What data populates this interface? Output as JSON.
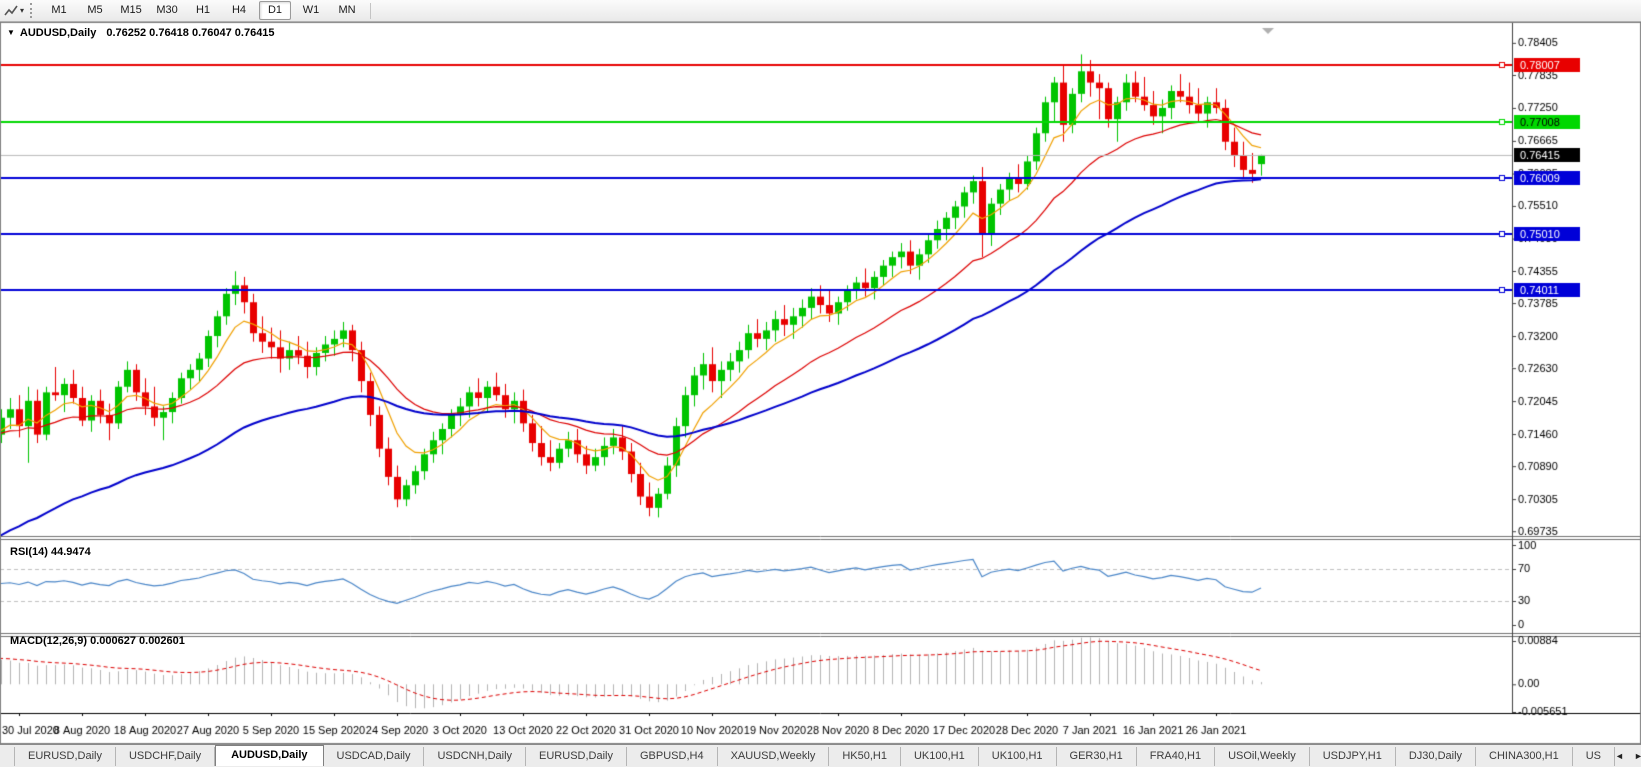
{
  "toolbar": {
    "timeframes": [
      "M1",
      "M5",
      "M15",
      "M30",
      "H1",
      "H4",
      "D1",
      "W1",
      "MN"
    ],
    "active_timeframe": "D1",
    "dropdown_icon": "▾"
  },
  "chart_window": {
    "collapse_icon": "▼",
    "title_symbol": "AUDUSD,Daily",
    "title_ohlc": "0.76252 0.76418 0.76047 0.76415"
  },
  "indicators": {
    "rsi_label": "RSI(14) 44.9474",
    "macd_label": "MACD(12,26,9) 0.000627 0.002601"
  },
  "tabbar": {
    "tabs": [
      "EURUSD,Daily",
      "USDCHF,Daily",
      "AUDUSD,Daily",
      "USDCAD,Daily",
      "USDCNH,Daily",
      "EURUSD,Daily",
      "GBPUSD,H4",
      "XAUUSD,Weekly",
      "HK50,H1",
      "UK100,H1",
      "UK100,H1",
      "GER30,H1",
      "FRA40,H1",
      "USOil,Weekly",
      "USDJPY,H1",
      "DJ30,Daily",
      "CHINA300,H1",
      "US"
    ],
    "active_index": 2,
    "scroll_left_icon": "◄",
    "scroll_right_icon": "►"
  },
  "chart_data": {
    "type": "candlestick",
    "title": "AUDUSD,Daily",
    "current_ohlc": {
      "open": 0.76252,
      "high": 0.76418,
      "low": 0.76047,
      "close": 0.76415
    },
    "ylim": [
      0.6965,
      0.7874
    ],
    "price_axis_ticks": [
      0.78405,
      0.77835,
      0.7725,
      0.76665,
      0.76085,
      0.7551,
      0.7493,
      0.74355,
      0.73785,
      0.732,
      0.7263,
      0.72045,
      0.7146,
      0.7089,
      0.70305,
      0.69735
    ],
    "x_labels": [
      "30 Jul 2020",
      "8 Aug 2020",
      "18 Aug 2020",
      "27 Aug 2020",
      "5 Sep 2020",
      "15 Sep 2020",
      "24 Sep 2020",
      "3 Oct 2020",
      "13 Oct 2020",
      "22 Oct 2020",
      "31 Oct 2020",
      "10 Nov 2020",
      "19 Nov 2020",
      "28 Nov 2020",
      "8 Dec 2020",
      "17 Dec 2020",
      "28 Dec 2020",
      "7 Jan 2021",
      "16 Jan 2021",
      "26 Jan 2021"
    ],
    "x_first_label_bar": 3,
    "x_label_step": 7,
    "candle_up_color": "#00c400",
    "candle_down_color": "#e80000",
    "candles": [
      [
        0.716,
        0.718,
        0.712,
        0.7145
      ],
      [
        0.7145,
        0.719,
        0.713,
        0.7175
      ],
      [
        0.7175,
        0.721,
        0.7155,
        0.719
      ],
      [
        0.719,
        0.7215,
        0.714,
        0.716
      ],
      [
        0.716,
        0.723,
        0.7095,
        0.7205
      ],
      [
        0.7205,
        0.7225,
        0.713,
        0.7145
      ],
      [
        0.7145,
        0.723,
        0.7135,
        0.722
      ],
      [
        0.722,
        0.7265,
        0.7205,
        0.7215
      ],
      [
        0.7215,
        0.7245,
        0.7185,
        0.7235
      ],
      [
        0.7235,
        0.726,
        0.72,
        0.721
      ],
      [
        0.721,
        0.723,
        0.716,
        0.717
      ],
      [
        0.717,
        0.7215,
        0.715,
        0.7205
      ],
      [
        0.7205,
        0.7225,
        0.7165,
        0.718
      ],
      [
        0.718,
        0.72,
        0.7135,
        0.7165
      ],
      [
        0.7165,
        0.724,
        0.7155,
        0.723
      ],
      [
        0.723,
        0.7275,
        0.722,
        0.726
      ],
      [
        0.726,
        0.727,
        0.7205,
        0.722
      ],
      [
        0.722,
        0.7245,
        0.718,
        0.7195
      ],
      [
        0.7195,
        0.723,
        0.716,
        0.7175
      ],
      [
        0.7175,
        0.7195,
        0.7135,
        0.7185
      ],
      [
        0.7185,
        0.722,
        0.7165,
        0.721
      ],
      [
        0.721,
        0.7255,
        0.72,
        0.7245
      ],
      [
        0.7245,
        0.727,
        0.7225,
        0.726
      ],
      [
        0.726,
        0.729,
        0.724,
        0.728
      ],
      [
        0.728,
        0.733,
        0.7265,
        0.732
      ],
      [
        0.732,
        0.7365,
        0.73,
        0.7355
      ],
      [
        0.7355,
        0.7405,
        0.734,
        0.7395
      ],
      [
        0.7395,
        0.7435,
        0.7375,
        0.741
      ],
      [
        0.741,
        0.7425,
        0.736,
        0.738
      ],
      [
        0.738,
        0.7395,
        0.731,
        0.7325
      ],
      [
        0.7325,
        0.7355,
        0.729,
        0.731
      ],
      [
        0.731,
        0.7335,
        0.728,
        0.73
      ],
      [
        0.73,
        0.733,
        0.7255,
        0.728
      ],
      [
        0.728,
        0.731,
        0.726,
        0.7295
      ],
      [
        0.7295,
        0.732,
        0.727,
        0.7285
      ],
      [
        0.7285,
        0.731,
        0.7245,
        0.7265
      ],
      [
        0.7265,
        0.73,
        0.725,
        0.729
      ],
      [
        0.729,
        0.732,
        0.7275,
        0.7305
      ],
      [
        0.7305,
        0.733,
        0.7285,
        0.7315
      ],
      [
        0.7315,
        0.7345,
        0.73,
        0.733
      ],
      [
        0.733,
        0.734,
        0.7275,
        0.7295
      ],
      [
        0.7295,
        0.731,
        0.722,
        0.724
      ],
      [
        0.724,
        0.7255,
        0.716,
        0.718
      ],
      [
        0.718,
        0.7195,
        0.7105,
        0.712
      ],
      [
        0.712,
        0.714,
        0.7055,
        0.707
      ],
      [
        0.707,
        0.709,
        0.7016,
        0.703
      ],
      [
        0.703,
        0.7065,
        0.7018,
        0.7055
      ],
      [
        0.7055,
        0.709,
        0.704,
        0.708
      ],
      [
        0.708,
        0.712,
        0.7065,
        0.711
      ],
      [
        0.711,
        0.715,
        0.7095,
        0.7135
      ],
      [
        0.7135,
        0.7165,
        0.711,
        0.7155
      ],
      [
        0.7155,
        0.719,
        0.714,
        0.718
      ],
      [
        0.718,
        0.721,
        0.716,
        0.7195
      ],
      [
        0.7195,
        0.723,
        0.7175,
        0.722
      ],
      [
        0.722,
        0.7245,
        0.7195,
        0.721
      ],
      [
        0.721,
        0.724,
        0.7185,
        0.723
      ],
      [
        0.723,
        0.7255,
        0.7205,
        0.7215
      ],
      [
        0.7215,
        0.7235,
        0.7175,
        0.719
      ],
      [
        0.719,
        0.722,
        0.7165,
        0.7205
      ],
      [
        0.7205,
        0.7225,
        0.715,
        0.7165
      ],
      [
        0.7165,
        0.718,
        0.7115,
        0.713
      ],
      [
        0.713,
        0.716,
        0.709,
        0.7105
      ],
      [
        0.7105,
        0.7135,
        0.708,
        0.7095
      ],
      [
        0.7095,
        0.713,
        0.7085,
        0.712
      ],
      [
        0.712,
        0.715,
        0.7105,
        0.7135
      ],
      [
        0.7135,
        0.7155,
        0.7095,
        0.711
      ],
      [
        0.711,
        0.7125,
        0.7075,
        0.709
      ],
      [
        0.709,
        0.712,
        0.708,
        0.7105
      ],
      [
        0.7105,
        0.714,
        0.709,
        0.7125
      ],
      [
        0.7125,
        0.7155,
        0.711,
        0.714
      ],
      [
        0.714,
        0.716,
        0.71,
        0.7115
      ],
      [
        0.7115,
        0.713,
        0.706,
        0.7075
      ],
      [
        0.7075,
        0.7095,
        0.702,
        0.7035
      ],
      [
        0.7035,
        0.706,
        0.7,
        0.7015
      ],
      [
        0.7015,
        0.705,
        0.6998,
        0.704
      ],
      [
        0.704,
        0.7105,
        0.703,
        0.709
      ],
      [
        0.709,
        0.7175,
        0.707,
        0.716
      ],
      [
        0.716,
        0.723,
        0.714,
        0.7215
      ],
      [
        0.7215,
        0.7265,
        0.7195,
        0.725
      ],
      [
        0.725,
        0.729,
        0.7225,
        0.727
      ],
      [
        0.727,
        0.73,
        0.722,
        0.724
      ],
      [
        0.724,
        0.7275,
        0.721,
        0.726
      ],
      [
        0.726,
        0.729,
        0.724,
        0.7275
      ],
      [
        0.7275,
        0.731,
        0.7255,
        0.7295
      ],
      [
        0.7295,
        0.734,
        0.728,
        0.7325
      ],
      [
        0.7325,
        0.735,
        0.73,
        0.7315
      ],
      [
        0.7315,
        0.7345,
        0.7295,
        0.733
      ],
      [
        0.733,
        0.7365,
        0.731,
        0.735
      ],
      [
        0.735,
        0.7375,
        0.732,
        0.734
      ],
      [
        0.734,
        0.737,
        0.7315,
        0.7355
      ],
      [
        0.7355,
        0.7385,
        0.7335,
        0.737
      ],
      [
        0.737,
        0.7405,
        0.735,
        0.739
      ],
      [
        0.739,
        0.741,
        0.736,
        0.7375
      ],
      [
        0.7375,
        0.74,
        0.7345,
        0.736
      ],
      [
        0.736,
        0.739,
        0.734,
        0.738
      ],
      [
        0.738,
        0.741,
        0.7365,
        0.74
      ],
      [
        0.74,
        0.7425,
        0.7385,
        0.7415
      ],
      [
        0.7415,
        0.744,
        0.739,
        0.7405
      ],
      [
        0.7405,
        0.7435,
        0.7385,
        0.7425
      ],
      [
        0.7425,
        0.7455,
        0.741,
        0.7445
      ],
      [
        0.7445,
        0.747,
        0.7425,
        0.746
      ],
      [
        0.746,
        0.7485,
        0.744,
        0.747
      ],
      [
        0.747,
        0.749,
        0.743,
        0.7445
      ],
      [
        0.7445,
        0.7475,
        0.742,
        0.7465
      ],
      [
        0.7465,
        0.75,
        0.745,
        0.749
      ],
      [
        0.749,
        0.7525,
        0.7475,
        0.751
      ],
      [
        0.751,
        0.754,
        0.749,
        0.753
      ],
      [
        0.753,
        0.756,
        0.751,
        0.755
      ],
      [
        0.755,
        0.7585,
        0.753,
        0.7575
      ],
      [
        0.7575,
        0.7605,
        0.7555,
        0.7595
      ],
      [
        0.7595,
        0.762,
        0.746,
        0.75
      ],
      [
        0.75,
        0.7565,
        0.748,
        0.7555
      ],
      [
        0.7555,
        0.759,
        0.7535,
        0.758
      ],
      [
        0.758,
        0.761,
        0.756,
        0.76
      ],
      [
        0.76,
        0.7625,
        0.7575,
        0.759
      ],
      [
        0.759,
        0.764,
        0.758,
        0.763
      ],
      [
        0.763,
        0.769,
        0.7615,
        0.768
      ],
      [
        0.768,
        0.7745,
        0.7665,
        0.7735
      ],
      [
        0.7735,
        0.778,
        0.77,
        0.777
      ],
      [
        0.777,
        0.78,
        0.7665,
        0.7695
      ],
      [
        0.7695,
        0.776,
        0.768,
        0.775
      ],
      [
        0.775,
        0.782,
        0.7735,
        0.779
      ],
      [
        0.779,
        0.781,
        0.7745,
        0.777
      ],
      [
        0.777,
        0.7785,
        0.7705,
        0.776
      ],
      [
        0.776,
        0.777,
        0.769,
        0.7705
      ],
      [
        0.7705,
        0.7745,
        0.7665,
        0.7735
      ],
      [
        0.7735,
        0.7785,
        0.772,
        0.777
      ],
      [
        0.777,
        0.779,
        0.7735,
        0.7745
      ],
      [
        0.7745,
        0.778,
        0.772,
        0.773
      ],
      [
        0.773,
        0.7755,
        0.7695,
        0.771
      ],
      [
        0.771,
        0.774,
        0.768,
        0.7725
      ],
      [
        0.7725,
        0.7765,
        0.7705,
        0.7755
      ],
      [
        0.7755,
        0.7785,
        0.7735,
        0.7745
      ],
      [
        0.7745,
        0.777,
        0.7715,
        0.773
      ],
      [
        0.773,
        0.776,
        0.77,
        0.7715
      ],
      [
        0.7715,
        0.7745,
        0.769,
        0.7735
      ],
      [
        0.7735,
        0.776,
        0.7715,
        0.7725
      ],
      [
        0.7725,
        0.774,
        0.765,
        0.7665
      ],
      [
        0.7665,
        0.769,
        0.762,
        0.764
      ],
      [
        0.764,
        0.7665,
        0.76,
        0.7615
      ],
      [
        0.7615,
        0.7645,
        0.7592,
        0.7608
      ],
      [
        0.76252,
        0.76418,
        0.76047,
        0.76415
      ]
    ],
    "moving_averages": [
      {
        "name": "fast",
        "period": 7,
        "color": "#f0a000"
      },
      {
        "name": "medium",
        "period": 21,
        "color": "#dd0000"
      },
      {
        "name": "slow",
        "period": 50,
        "color": "#0000cc",
        "seed": 0.695
      }
    ],
    "horizontal_lines": [
      {
        "price": 0.78007,
        "label": "0.78007",
        "color": "#e80000",
        "text": "#ffffff"
      },
      {
        "price": 0.77008,
        "label": "0.77008",
        "color": "#00d800",
        "text": "#000000"
      },
      {
        "price": 0.76009,
        "label": "0.76009",
        "color": "#0000d8",
        "text": "#ffffff"
      },
      {
        "price": 0.7501,
        "label": "0.75010",
        "color": "#0000d8",
        "text": "#ffffff"
      },
      {
        "price": 0.74011,
        "label": "0.74011",
        "color": "#0000d8",
        "text": "#ffffff"
      }
    ],
    "current_price": {
      "price": 0.76415,
      "label": "0.76415",
      "line_color": "#b8b8b8",
      "badge_bg": "#000000",
      "text": "#ffffff"
    },
    "rsi": {
      "params": "14",
      "value": 44.9474,
      "levels": [
        70,
        30
      ],
      "axis_ticks": [
        "100",
        "70",
        "30",
        "0"
      ],
      "color": "#4a86c8"
    },
    "macd": {
      "params": "12,26,9",
      "values": [
        0.000627,
        0.002601
      ],
      "ylim": [
        -0.005651,
        0.00884
      ],
      "axis_ticks": [
        "0.00884",
        "0.00",
        "-0.005651"
      ],
      "hist_color": "#b4b4b4",
      "signal_color": "#dd0000"
    }
  }
}
